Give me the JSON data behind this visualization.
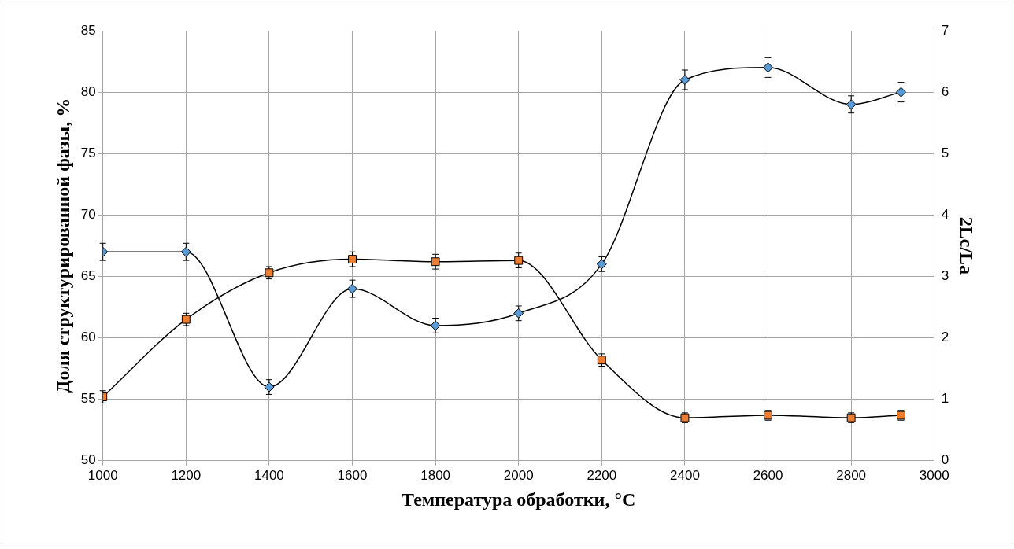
{
  "chart_data": {
    "type": "line",
    "xlabel": "Температура обработки, °C",
    "ylabel": "Доля структурированной фазы, %",
    "y2label": "2Lc/La",
    "x": [
      1000,
      1200,
      1400,
      1600,
      1800,
      2000,
      2200,
      2400,
      2600,
      2800,
      2920
    ],
    "series": [
      {
        "color": "#5b9bd5",
        "marker": "diamond",
        "values": [
          67,
          67,
          56,
          64,
          61,
          62,
          66,
          81,
          82,
          79,
          80
        ],
        "errors": [
          0.7,
          0.7,
          0.6,
          0.7,
          0.6,
          0.6,
          0.6,
          0.8,
          0.8,
          0.7,
          0.8
        ]
      },
      {
        "color": "#ed7d31",
        "marker": "square",
        "axis": "y2",
        "values": [
          1.04,
          2.3,
          3.06,
          3.28,
          3.24,
          3.26,
          1.64,
          0.7,
          0.74,
          0.7,
          0.74
        ],
        "errors": [
          0.1,
          0.1,
          0.1,
          0.12,
          0.12,
          0.12,
          0.1,
          0.08,
          0.08,
          0.08,
          0.08
        ]
      }
    ],
    "xlim": [
      1000,
      3000
    ],
    "xticks": [
      1000,
      1200,
      1400,
      1600,
      1800,
      2000,
      2200,
      2400,
      2600,
      2800,
      3000
    ],
    "ylim": [
      50,
      85
    ],
    "yticks": [
      50,
      55,
      60,
      65,
      70,
      75,
      80,
      85
    ],
    "y2lim": [
      0,
      7
    ],
    "y2ticks": [
      0,
      1,
      2,
      3,
      4,
      5,
      6,
      7
    ],
    "grid": true,
    "legend": false
  }
}
